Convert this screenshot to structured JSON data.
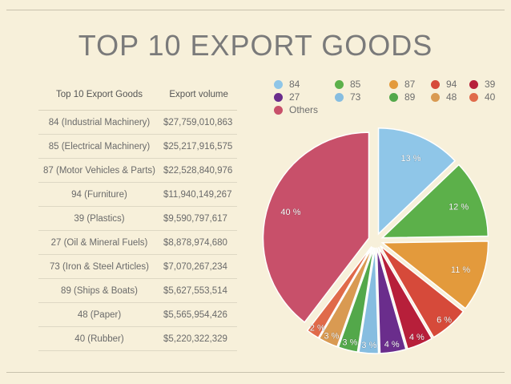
{
  "title": "TOP 10  EXPORT GOODS",
  "table": {
    "headers": [
      "Top 10 Export Goods",
      "Export volume"
    ],
    "rows": [
      [
        "84 (Industrial Machinery)",
        "$27,759,010,863"
      ],
      [
        "85 (Electrical Machinery)",
        "$25,217,916,575"
      ],
      [
        "87 (Motor Vehicles & Parts)",
        "$22,528,840,976"
      ],
      [
        "94 (Furniture)",
        "$11,940,149,267"
      ],
      [
        "39 (Plastics)",
        "$9,590,797,617"
      ],
      [
        "27 (Oil & Mineral Fuels)",
        "$8,878,974,680"
      ],
      [
        "73 (Iron & Steel Articles)",
        "$7,070,267,234"
      ],
      [
        "89 (Ships & Boats)",
        "$5,627,553,514"
      ],
      [
        "48 (Paper)",
        "$5,565,954,426"
      ],
      [
        "40 (Rubber)",
        "$5,220,322,329"
      ]
    ]
  },
  "chart_data": {
    "type": "pie",
    "exploded": true,
    "legend_position": "top",
    "slices": [
      {
        "label": "84",
        "value": 13,
        "display": "13 %",
        "color": "#8fc6e8"
      },
      {
        "label": "85",
        "value": 12,
        "display": "12 %",
        "color": "#5cb04a"
      },
      {
        "label": "87",
        "value": 11,
        "display": "11 %",
        "color": "#e39a3c"
      },
      {
        "label": "94",
        "value": 6,
        "display": "6 %",
        "color": "#d64a3a"
      },
      {
        "label": "39",
        "value": 4,
        "display": "4 %",
        "color": "#b71f3a"
      },
      {
        "label": "27",
        "value": 4,
        "display": "4 %",
        "color": "#6a2d8c"
      },
      {
        "label": "73",
        "value": 3,
        "display": "3 %",
        "color": "#86bde0"
      },
      {
        "label": "89",
        "value": 3,
        "display": "3 %",
        "color": "#53a84a"
      },
      {
        "label": "48",
        "value": 3,
        "display": "3 %",
        "color": "#d99a52"
      },
      {
        "label": "40",
        "value": 2,
        "display": "2 %",
        "color": "#e06a4a"
      },
      {
        "label": "Others",
        "value": 40,
        "display": "40 %",
        "color": "#c8506a"
      }
    ]
  }
}
